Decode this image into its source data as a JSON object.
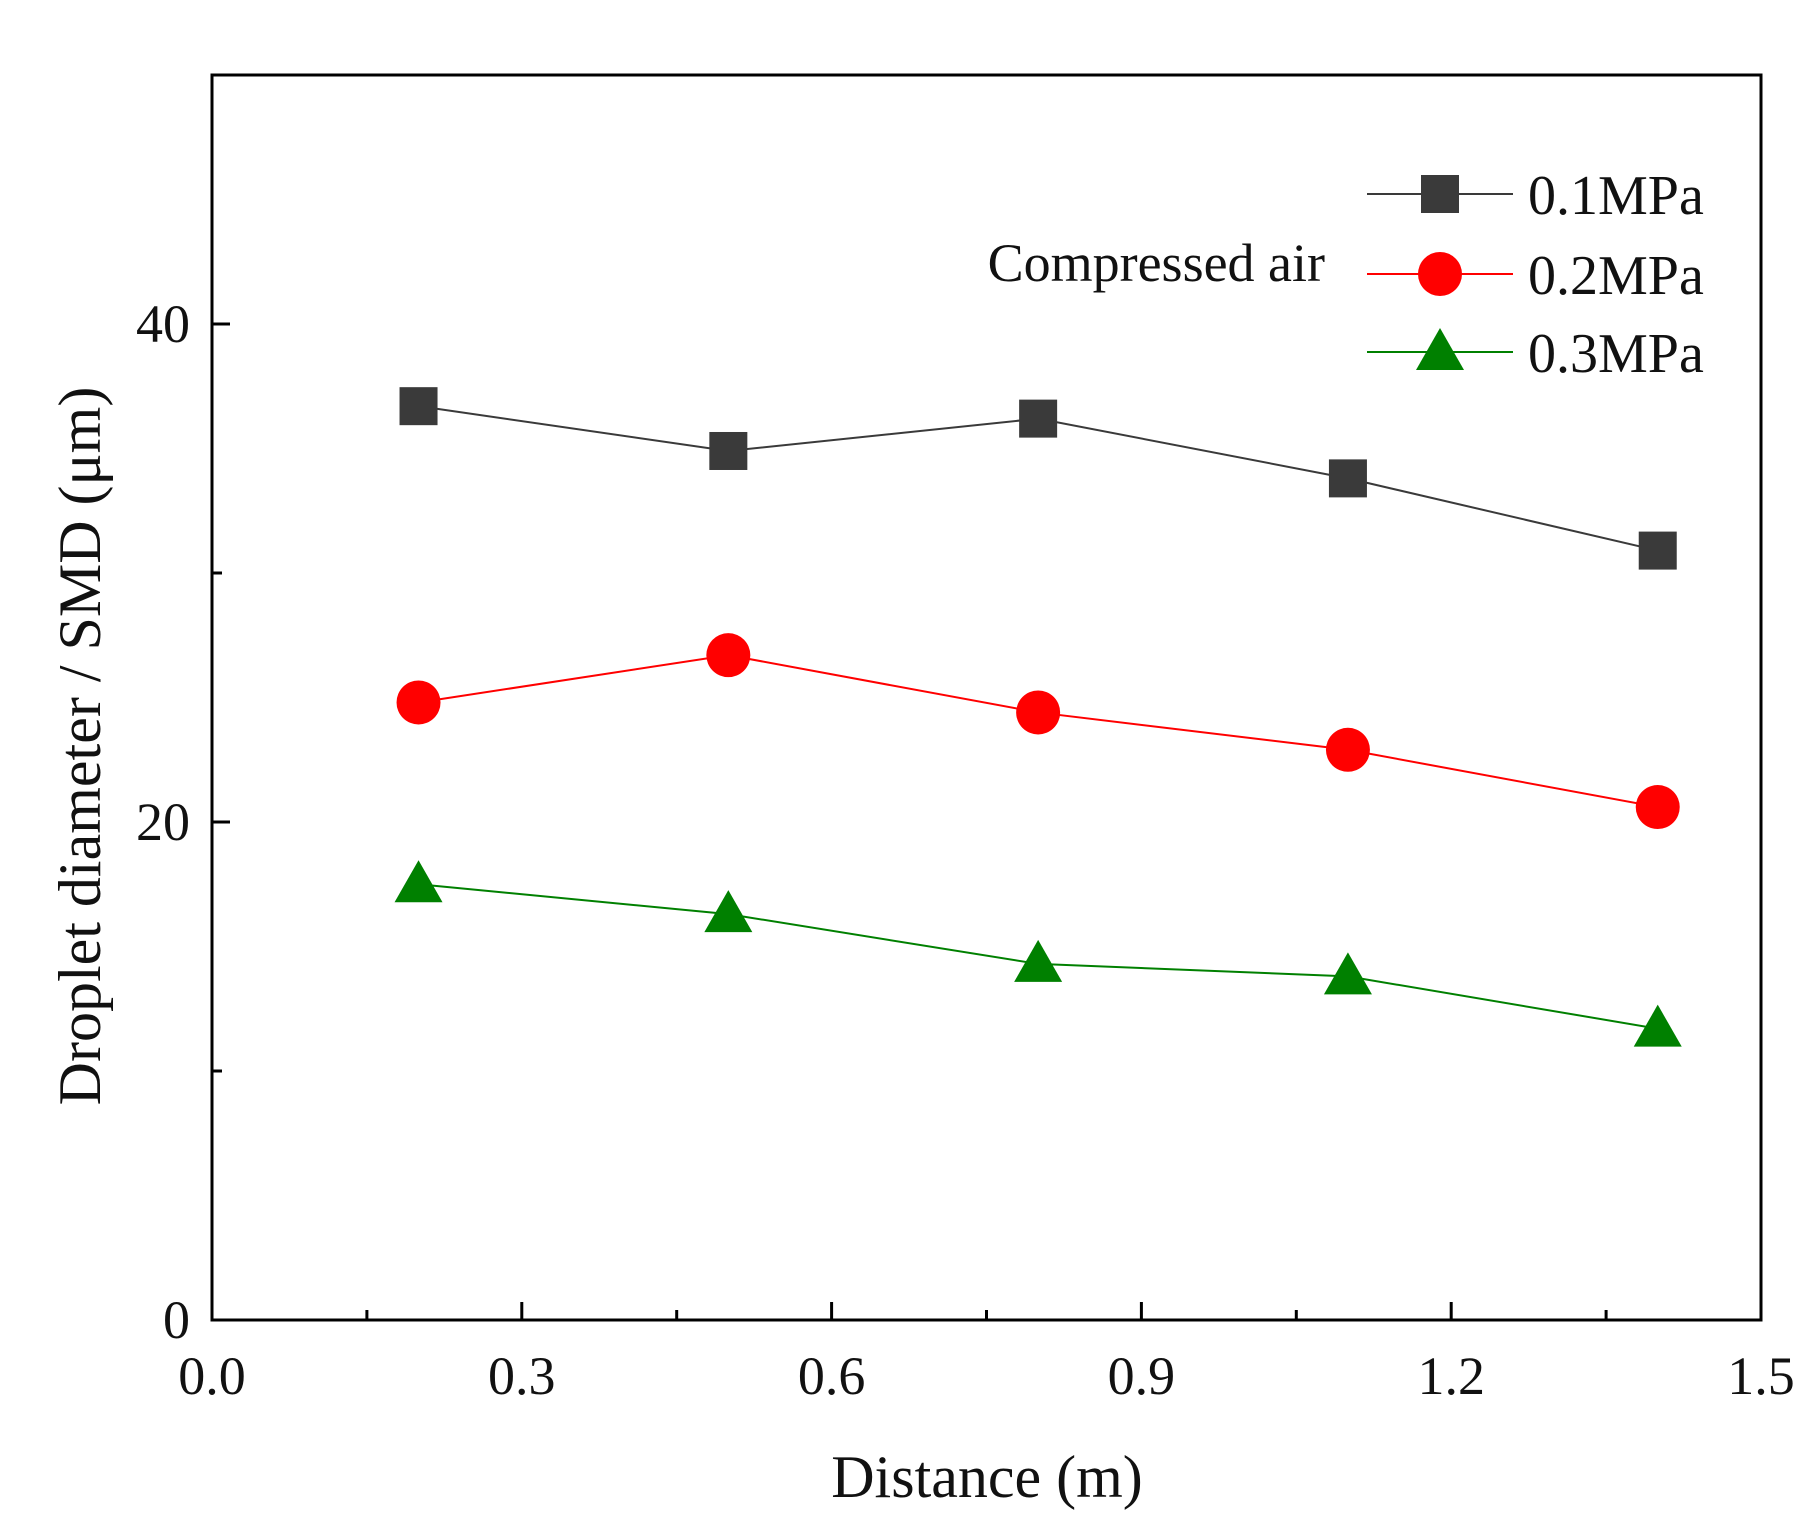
{
  "chart_data": {
    "type": "line",
    "title": "",
    "xlabel": "Distance (m)",
    "ylabel": "Droplet diameter / SMD (μm)",
    "xlim": [
      0.0,
      1.5
    ],
    "ylim": [
      0,
      50
    ],
    "x_ticks": [
      0.0,
      0.3,
      0.6,
      0.9,
      1.2,
      1.5
    ],
    "x_tick_labels": [
      "0.0",
      "0.3",
      "0.6",
      "0.9",
      "1.2",
      "1.5"
    ],
    "x_minor_ticks": [
      0.15,
      0.45,
      0.75,
      1.05,
      1.35
    ],
    "y_ticks": [
      0,
      20,
      40
    ],
    "y_tick_labels": [
      "0",
      "20",
      "40"
    ],
    "y_minor_ticks": [
      10,
      30
    ],
    "grid": false,
    "legend_position": "top-right",
    "annotation": "Compressed air",
    "series": [
      {
        "name": "0.1MPa",
        "color": "#3a3a3a",
        "marker": "square",
        "x": [
          0.2,
          0.5,
          0.8,
          1.1,
          1.4
        ],
        "y": [
          36.7,
          34.9,
          36.2,
          33.8,
          30.9
        ]
      },
      {
        "name": "0.2MPa",
        "color": "#ff0000",
        "marker": "circle",
        "x": [
          0.2,
          0.5,
          0.8,
          1.1,
          1.4
        ],
        "y": [
          24.8,
          26.7,
          24.4,
          22.9,
          20.6
        ]
      },
      {
        "name": "0.3MPa",
        "color": "#008000",
        "marker": "triangle",
        "x": [
          0.2,
          0.5,
          0.8,
          1.1,
          1.4
        ],
        "y": [
          17.5,
          16.3,
          14.3,
          13.8,
          11.7
        ]
      }
    ]
  }
}
